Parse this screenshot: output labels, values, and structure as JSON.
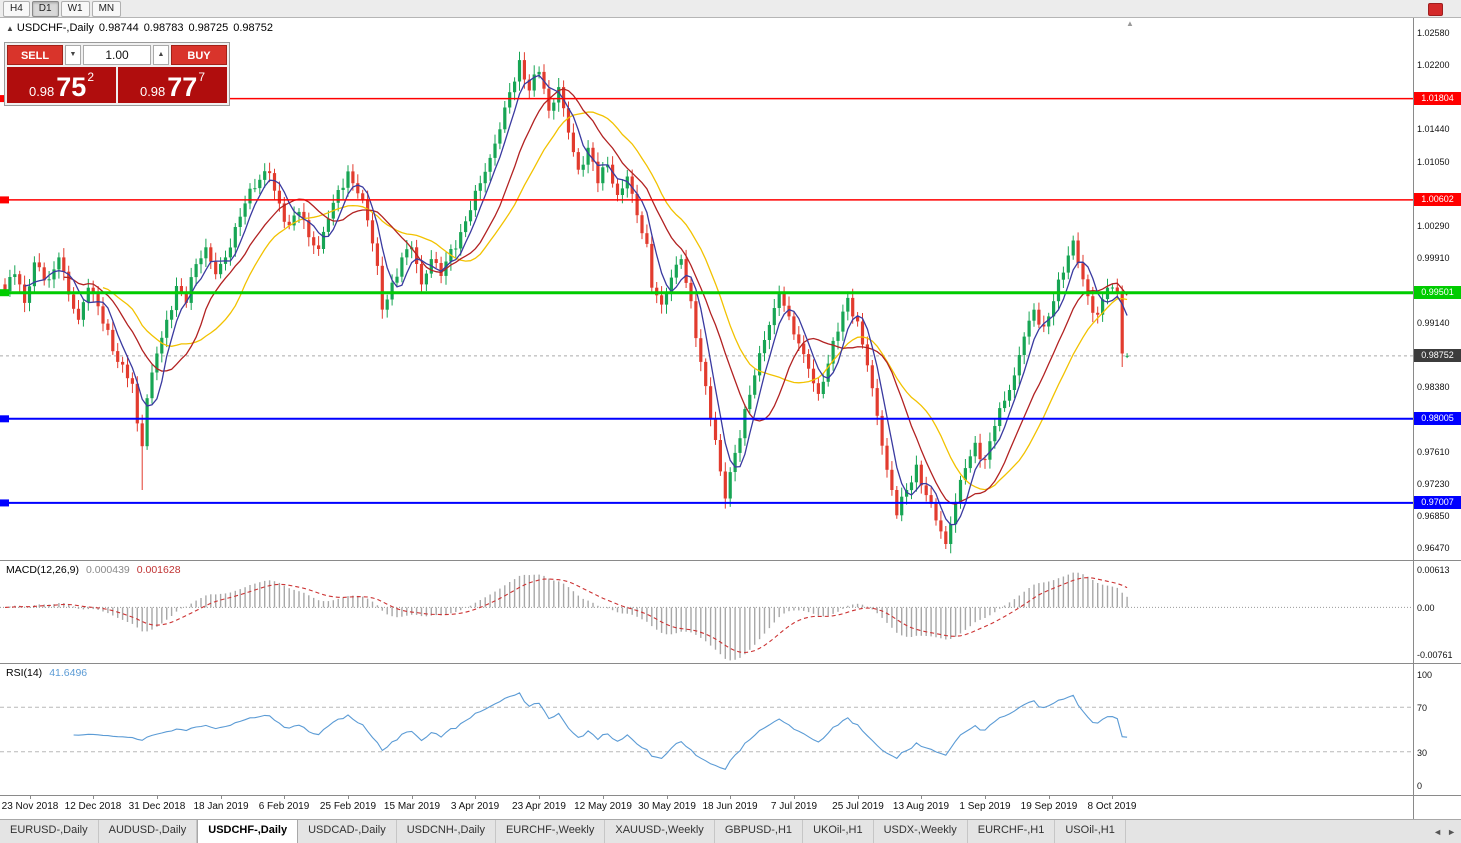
{
  "toolbar": {
    "timeframes": [
      {
        "label": "H4",
        "active": false
      },
      {
        "label": "D1",
        "active": true
      },
      {
        "label": "W1",
        "active": false
      },
      {
        "label": "MN",
        "active": false
      }
    ]
  },
  "chart": {
    "symbol_line": {
      "marker": "▲",
      "symbol": "USDCHF-,Daily",
      "open": "0.98744",
      "high": "0.98783",
      "low": "0.98725",
      "close": "0.98752"
    },
    "trade_panel": {
      "sell_label": "SELL",
      "buy_label": "BUY",
      "volume": "1.00",
      "spin_down": "▼",
      "spin_up": "▲",
      "sell_price": {
        "base": "0.98",
        "big": "75",
        "sup": "2"
      },
      "buy_price": {
        "base": "0.98",
        "big": "77",
        "sup": "7"
      }
    },
    "shift_marker": "▲"
  },
  "chart_data": {
    "type": "candlestick",
    "title": "USDCHF-,Daily",
    "y_range": [
      0.9633,
      1.0276
    ],
    "y_axis_ticks": [
      "1.02580",
      "1.02200",
      "1.01440",
      "1.01050",
      "1.00290",
      "0.99910",
      "0.99140",
      "0.98380",
      "0.97610",
      "0.97230",
      "0.96850",
      "0.96470"
    ],
    "x_tick_dates": [
      "23 Nov 2018",
      "12 Dec 2018",
      "31 Dec 2018",
      "18 Jan 2019",
      "6 Feb 2019",
      "25 Feb 2019",
      "15 Mar 2019",
      "3 Apr 2019",
      "23 Apr 2019",
      "12 May 2019",
      "30 May 2019",
      "18 Jun 2019",
      "7 Jul 2019",
      "25 Jul 2019",
      "13 Aug 2019",
      "1 Sep 2019",
      "19 Sep 2019",
      "8 Oct 2019"
    ],
    "candle_count": 230,
    "colors": {
      "up": "#17a554",
      "down": "#e23b2e",
      "ma_fast": "#3a3aa0",
      "ma_mid": "#b22222",
      "ma_slow": "#f2c200",
      "macd_hist": "#a8a8a8",
      "macd_signal": "#cc3333",
      "rsi": "#5b9bd5",
      "current_line": "#aaaaaa"
    },
    "key_levels": [
      {
        "price": 1.01804,
        "label": "1.01804",
        "color": "#ff0000",
        "line_width": 1.5
      },
      {
        "price": 1.00602,
        "label": "1.00602",
        "color": "#ff0000",
        "line_width": 1.5
      },
      {
        "price": 0.99501,
        "label": "0.99501",
        "color": "#00cc00",
        "line_width": 3
      },
      {
        "price": 0.98005,
        "label": "0.98005",
        "color": "#0000ff",
        "line_width": 2
      },
      {
        "price": 0.97007,
        "label": "0.97007",
        "color": "#0000ff",
        "line_width": 2
      }
    ],
    "current_price": {
      "value": 0.98752,
      "label": "0.98752",
      "box_color": "#3c3c3c"
    },
    "moving_average_periods": {
      "fast": 5,
      "mid": 13,
      "slow": 21
    },
    "price_swing_points": [
      [
        0,
        0.9952
      ],
      [
        2,
        0.9972
      ],
      [
        4,
        0.9938
      ],
      [
        6,
        0.9986
      ],
      [
        9,
        0.9966
      ],
      [
        11,
        0.9992
      ],
      [
        13,
        0.9948
      ],
      [
        15,
        0.9918
      ],
      [
        17,
        0.9956
      ],
      [
        19,
        0.9934
      ],
      [
        21,
        0.9906
      ],
      [
        23,
        0.9868
      ],
      [
        26,
        0.9842
      ],
      [
        27,
        0.9795
      ],
      [
        28,
        0.9768
      ],
      [
        29,
        0.9825
      ],
      [
        31,
        0.9878
      ],
      [
        33,
        0.9918
      ],
      [
        35,
        0.9958
      ],
      [
        37,
        0.9938
      ],
      [
        39,
        0.9984
      ],
      [
        41,
        1.0004
      ],
      [
        43,
        0.9972
      ],
      [
        45,
        0.9992
      ],
      [
        47,
        1.0028
      ],
      [
        49,
        1.0056
      ],
      [
        52,
        1.0084
      ],
      [
        54,
        1.0092
      ],
      [
        56,
        1.0056
      ],
      [
        58,
        1.003
      ],
      [
        60,
        1.0046
      ],
      [
        62,
        1.0016
      ],
      [
        64,
        1.0002
      ],
      [
        66,
        1.0038
      ],
      [
        68,
        1.0072
      ],
      [
        70,
        1.0094
      ],
      [
        72,
        1.0068
      ],
      [
        74,
        1.0036
      ],
      [
        76,
        0.9982
      ],
      [
        77,
        0.993
      ],
      [
        79,
        0.9962
      ],
      [
        81,
        0.9992
      ],
      [
        83,
        1.0004
      ],
      [
        85,
        0.996
      ],
      [
        87,
        0.999
      ],
      [
        89,
        0.997
      ],
      [
        91,
        1.0002
      ],
      [
        93,
        1.0022
      ],
      [
        95,
        1.0048
      ],
      [
        97,
        1.008
      ],
      [
        99,
        1.011
      ],
      [
        101,
        1.0144
      ],
      [
        103,
        1.0188
      ],
      [
        105,
        1.0226
      ],
      [
        107,
        1.019
      ],
      [
        109,
        1.0212
      ],
      [
        111,
        1.0166
      ],
      [
        113,
        1.0194
      ],
      [
        115,
        1.014
      ],
      [
        117,
        1.0096
      ],
      [
        119,
        1.0122
      ],
      [
        121,
        1.008
      ],
      [
        123,
        1.0102
      ],
      [
        125,
        1.0066
      ],
      [
        127,
        1.0088
      ],
      [
        129,
        1.0042
      ],
      [
        131,
        1.0008
      ],
      [
        132,
        0.9956
      ],
      [
        134,
        0.9936
      ],
      [
        136,
        0.9968
      ],
      [
        138,
        0.999
      ],
      [
        140,
        0.994
      ],
      [
        142,
        0.9868
      ],
      [
        144,
        0.98
      ],
      [
        146,
        0.9738
      ],
      [
        147,
        0.9706
      ],
      [
        149,
        0.976
      ],
      [
        151,
        0.9812
      ],
      [
        153,
        0.9852
      ],
      [
        155,
        0.9894
      ],
      [
        157,
        0.9932
      ],
      [
        158,
        0.995
      ],
      [
        160,
        0.9922
      ],
      [
        162,
        0.989
      ],
      [
        164,
        0.986
      ],
      [
        166,
        0.983
      ],
      [
        168,
        0.9866
      ],
      [
        170,
        0.9904
      ],
      [
        172,
        0.9944
      ],
      [
        174,
        0.9916
      ],
      [
        176,
        0.9864
      ],
      [
        178,
        0.9804
      ],
      [
        180,
        0.974
      ],
      [
        182,
        0.9686
      ],
      [
        184,
        0.9716
      ],
      [
        186,
        0.9746
      ],
      [
        188,
        0.971
      ],
      [
        190,
        0.968
      ],
      [
        192,
        0.9652
      ],
      [
        194,
        0.9702
      ],
      [
        196,
        0.9742
      ],
      [
        198,
        0.9772
      ],
      [
        200,
        0.9752
      ],
      [
        202,
        0.9792
      ],
      [
        204,
        0.9822
      ],
      [
        206,
        0.9852
      ],
      [
        208,
        0.9898
      ],
      [
        210,
        0.993
      ],
      [
        212,
        0.991
      ],
      [
        214,
        0.994
      ],
      [
        216,
        0.9974
      ],
      [
        218,
        1.0012
      ],
      [
        220,
        0.9966
      ],
      [
        221,
        0.9946
      ],
      [
        223,
        0.9924
      ],
      [
        225,
        0.9956
      ],
      [
        227,
        0.995
      ],
      [
        228,
        0.9878
      ],
      [
        229,
        0.98752
      ]
    ],
    "candle_overrides": [
      {
        "index": 28,
        "low": 0.9716
      },
      {
        "index": 105,
        "high": 1.0236
      },
      {
        "index": 147,
        "low": 0.9694
      },
      {
        "index": 192,
        "low": 0.9646
      },
      {
        "index": 228,
        "low": 0.9862
      },
      {
        "index": 229,
        "open": 0.98744,
        "high": 0.98783,
        "low": 0.98725
      }
    ],
    "indicators": [
      {
        "name": "MACD",
        "params": [
          12,
          26,
          9
        ],
        "display_values": [
          0.000439,
          0.001628
        ],
        "axis_range": [
          -0.009,
          0.0075
        ]
      },
      {
        "name": "RSI",
        "params": [
          14
        ],
        "display_value": 41.6496,
        "axis_range": [
          0,
          100
        ],
        "guide_levels": [
          70,
          30
        ]
      }
    ]
  },
  "macd": {
    "name": "MACD(12,26,9)",
    "value_main": "0.000439",
    "value_signal": "0.001628",
    "axis": [
      "0.00613",
      "0.00",
      "-0.00761"
    ]
  },
  "rsi": {
    "name": "RSI(14)",
    "value": "41.6496",
    "axis": [
      "100",
      "70",
      "30",
      "0"
    ]
  },
  "tabbar": {
    "active_index": 2,
    "nav_left": "◄",
    "nav_right": "►",
    "tabs": [
      {
        "label": "EURUSD-,Daily"
      },
      {
        "label": "AUDUSD-,Daily"
      },
      {
        "label": "USDCHF-,Daily"
      },
      {
        "label": "USDCAD-,Daily"
      },
      {
        "label": "USDCNH-,Daily"
      },
      {
        "label": "EURCHF-,Weekly"
      },
      {
        "label": "XAUUSD-,Weekly"
      },
      {
        "label": "GBPUSD-,H1"
      },
      {
        "label": "UKOil-,H1"
      },
      {
        "label": "USDX-,Weekly"
      },
      {
        "label": "EURCHF-,H1"
      },
      {
        "label": "USOil-,H1"
      }
    ]
  }
}
